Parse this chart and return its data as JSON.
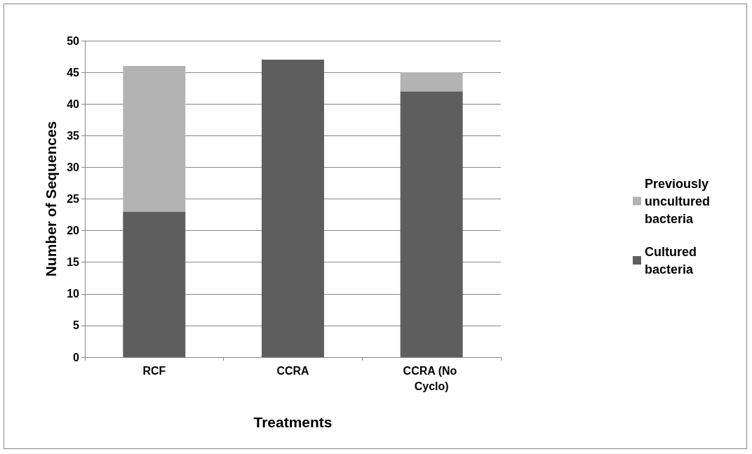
{
  "chart_data": {
    "type": "bar",
    "xlabel": "Treatments",
    "ylabel": "Number of Sequences",
    "categories": [
      "RCF",
      "CCRA",
      "CCRA (No Cyclo)"
    ],
    "stacked": true,
    "series": [
      {
        "name": "Cultured bacteria",
        "color": "#5e5e5e",
        "values": [
          23,
          47,
          42
        ]
      },
      {
        "name": "Previously uncultured bacteria",
        "color": "#b3b3b3",
        "values": [
          23,
          0,
          3
        ]
      }
    ],
    "ylim": [
      0,
      50
    ],
    "yticks": [
      0,
      5,
      10,
      15,
      20,
      25,
      30,
      35,
      40,
      45,
      50
    ],
    "grid": "y",
    "legend": "right"
  }
}
